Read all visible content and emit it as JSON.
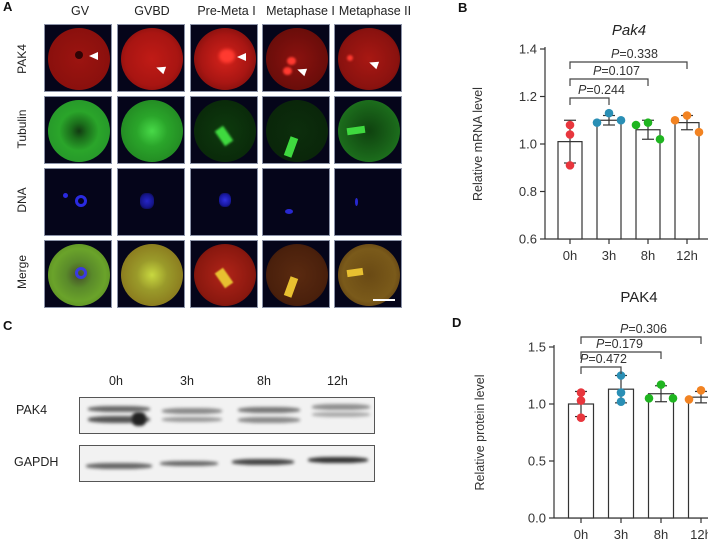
{
  "figure": {
    "panels": {
      "A": {
        "letter": "A",
        "columns": [
          "GV",
          "GVBD",
          "Pre-Meta I",
          "Metaphase I",
          "Metaphase II"
        ],
        "rows": [
          "PAK4",
          "Tubulin",
          "DNA",
          "Merge"
        ],
        "channel_colors": {
          "PAK4": "#e0201c",
          "Tubulin": "#29c42a",
          "DNA": "#2426e0",
          "Merge": "#b8a020"
        },
        "arrowheads": "white arrowheads on PAK4 row in every column",
        "scale_bar": "white bar bottom-right of Merge / Metaphase II"
      },
      "B": {
        "letter": "B"
      },
      "C": {
        "letter": "C",
        "lanes": [
          "0h",
          "3h",
          "8h",
          "12h"
        ],
        "bands": [
          "PAK4",
          "GAPDH"
        ]
      },
      "D": {
        "letter": "D"
      }
    }
  },
  "chart_data": [
    {
      "panel": "B",
      "type": "bar",
      "title": "Pak4",
      "title_style": "italic",
      "xlabel": "",
      "ylabel": "Relative mRNA level",
      "categories": [
        "0h",
        "3h",
        "8h",
        "12h"
      ],
      "values": [
        1.01,
        1.1,
        1.06,
        1.09
      ],
      "error_sd": [
        0.09,
        0.02,
        0.04,
        0.03
      ],
      "points": [
        [
          1.08,
          1.04,
          0.91
        ],
        [
          1.13,
          1.1,
          1.09
        ],
        [
          1.09,
          1.08,
          1.02
        ],
        [
          1.12,
          1.1,
          1.05
        ]
      ],
      "point_colors": [
        "#e8363d",
        "#2a8fb5",
        "#1fb520",
        "#f28322"
      ],
      "ylim": [
        0.6,
        1.4
      ],
      "yticks": [
        "0.6",
        "0.8",
        "1.0",
        "1.2",
        "1.4"
      ],
      "comparisons": [
        {
          "from": "0h",
          "to": "3h",
          "label_p": "P",
          "label_val": "=0.244"
        },
        {
          "from": "0h",
          "to": "8h",
          "label_p": "P",
          "label_val": "=0.107"
        },
        {
          "from": "0h",
          "to": "12h",
          "label_p": "P",
          "label_val": "=0.338"
        }
      ],
      "grid": false,
      "legend": "none"
    },
    {
      "panel": "D",
      "type": "bar",
      "title": "PAK4",
      "xlabel": "",
      "ylabel": "Relative protein level",
      "categories": [
        "0h",
        "3h",
        "8h",
        "12h"
      ],
      "values": [
        1.0,
        1.13,
        1.09,
        1.06
      ],
      "error_sd": [
        0.11,
        0.12,
        0.07,
        0.05
      ],
      "points": [
        [
          1.1,
          1.03,
          0.88
        ],
        [
          1.25,
          1.1,
          1.02
        ],
        [
          1.17,
          1.05,
          1.05
        ],
        [
          1.12,
          1.04,
          1.04
        ]
      ],
      "point_colors": [
        "#e8363d",
        "#2a8fb5",
        "#1fb520",
        "#f28322"
      ],
      "ylim": [
        0.0,
        1.5
      ],
      "yticks": [
        "0.0",
        "0.5",
        "1.0",
        "1.5"
      ],
      "comparisons": [
        {
          "from": "0h",
          "to": "3h",
          "label_p": "P",
          "label_val": "=0.472"
        },
        {
          "from": "0h",
          "to": "8h",
          "label_p": "P",
          "label_val": "=0.179"
        },
        {
          "from": "0h",
          "to": "12h",
          "label_p": "P",
          "label_val": "=0.306"
        }
      ],
      "grid": false,
      "legend": "none"
    }
  ]
}
